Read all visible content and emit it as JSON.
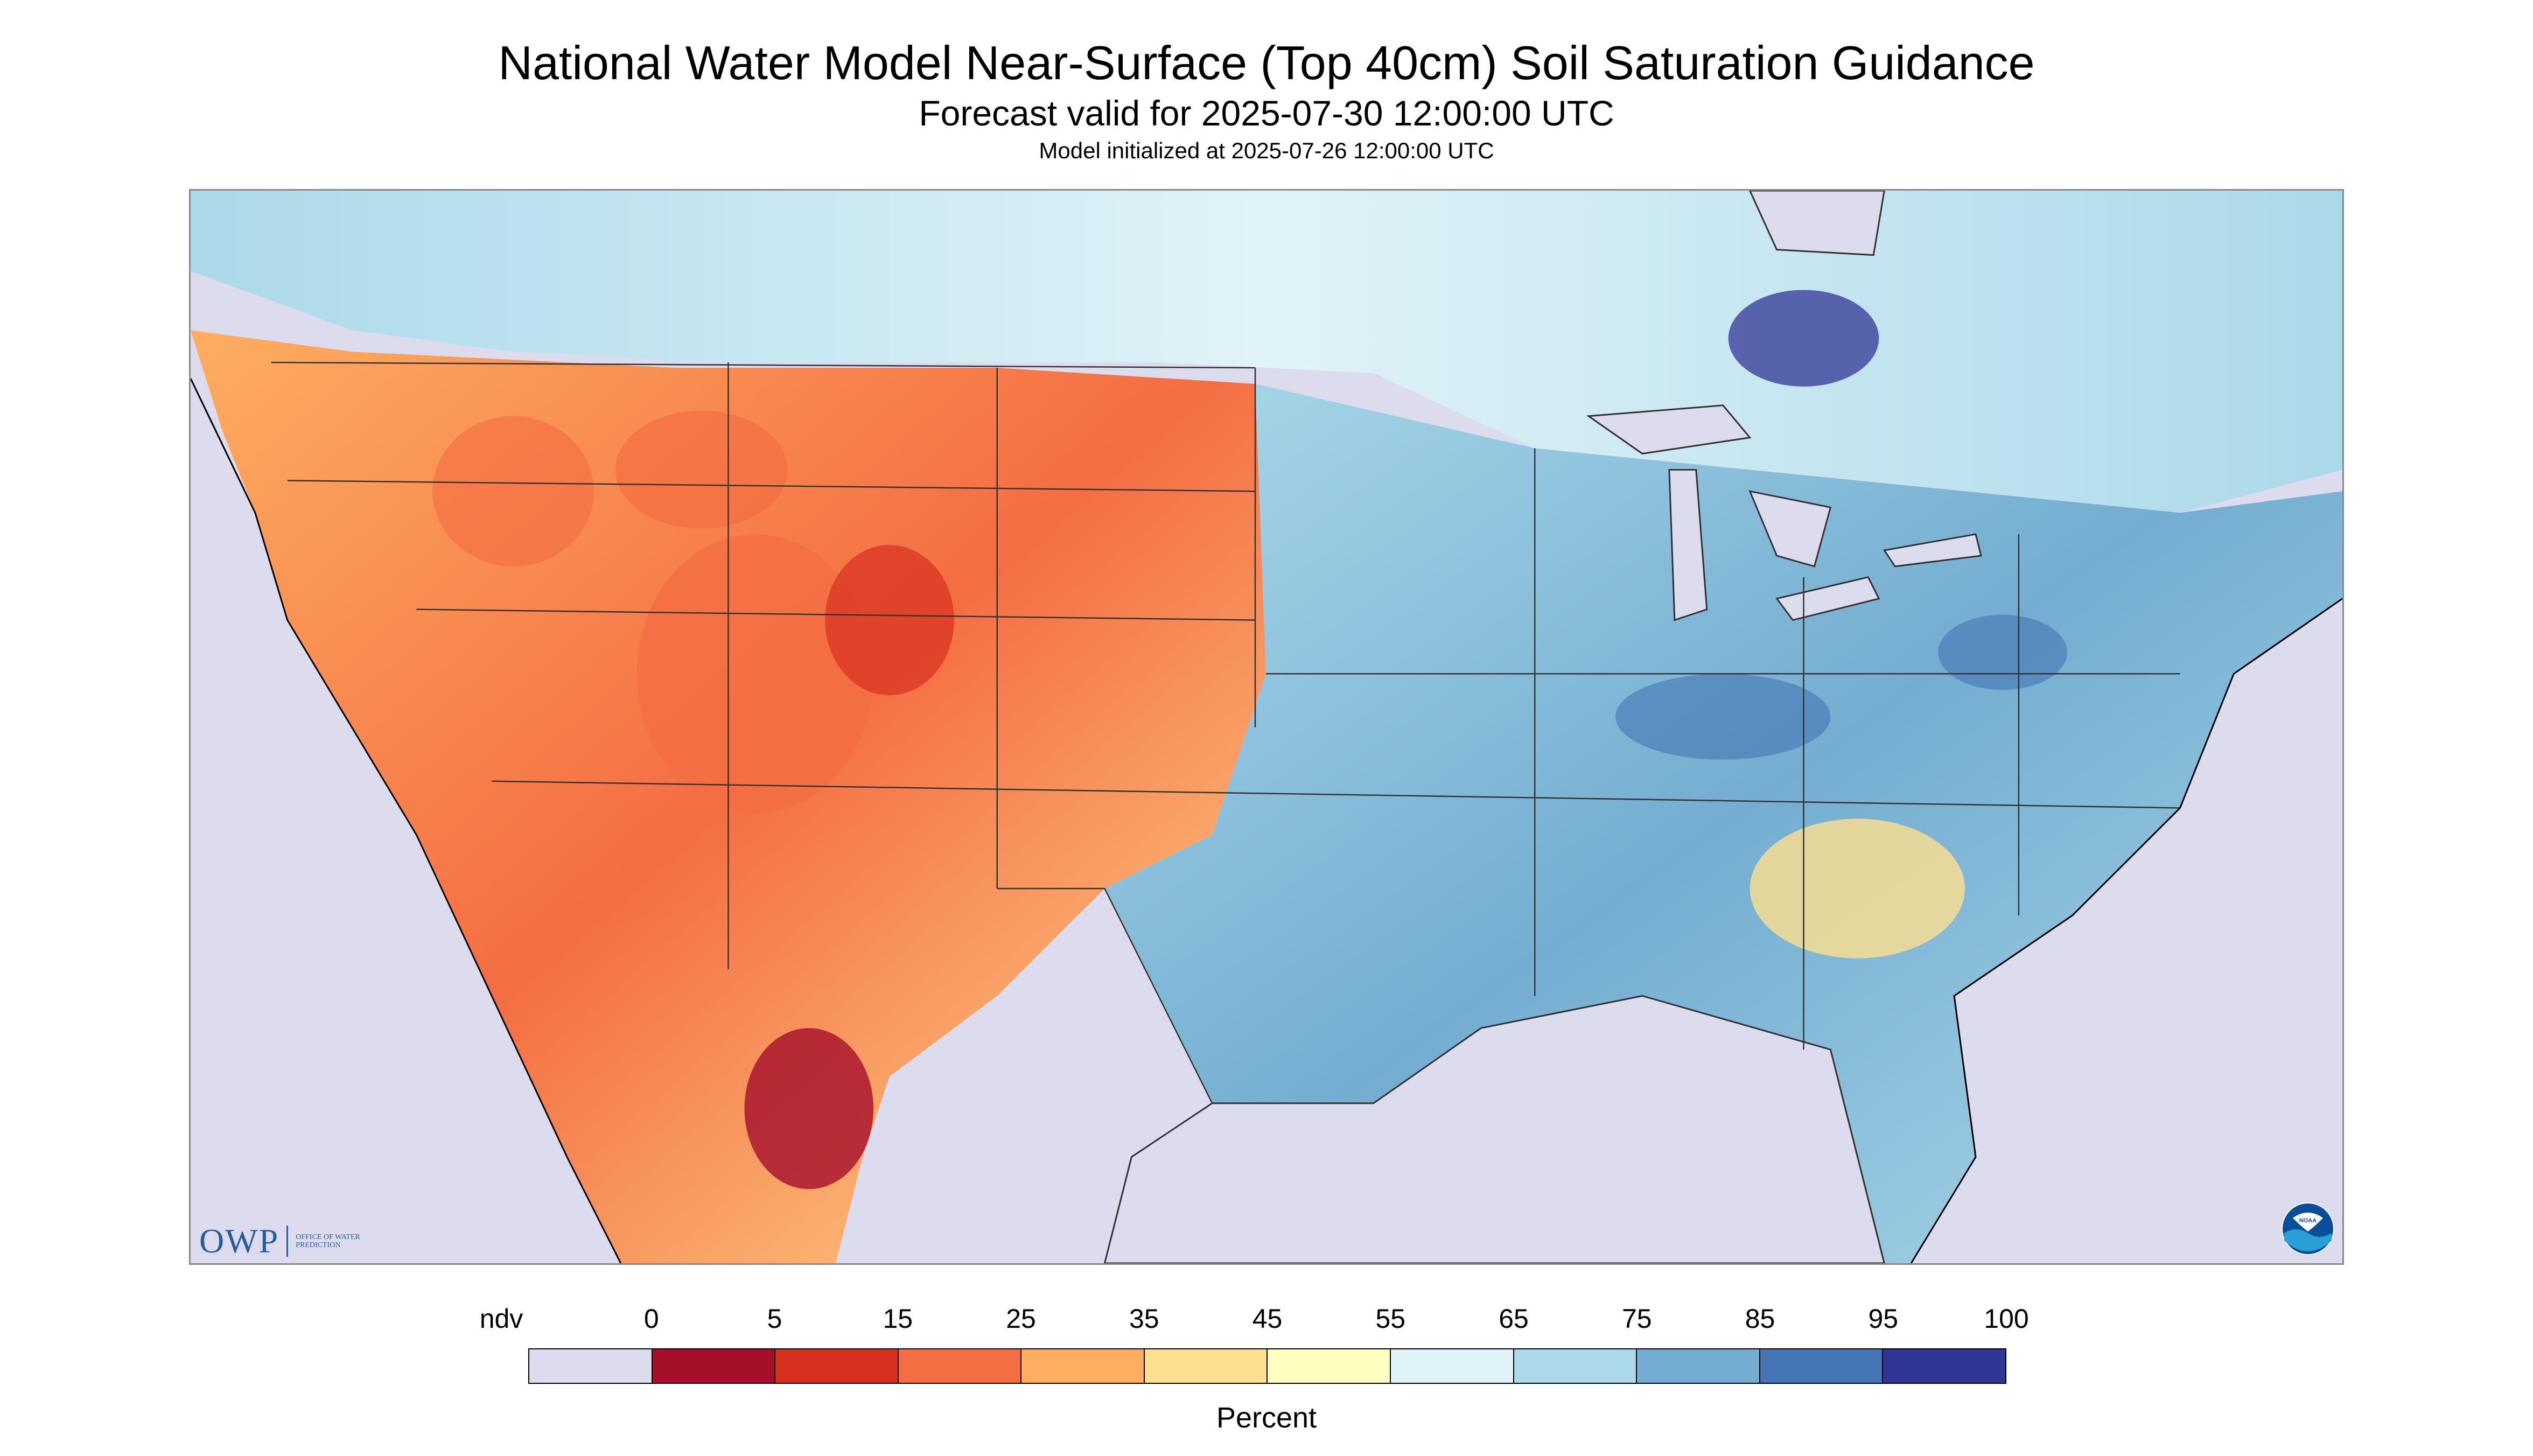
{
  "header": {
    "title": "National Water Model Near-Surface (Top 40cm) Soil Saturation Guidance",
    "subtitle": "Forecast valid for 2025-07-30 12:00:00 UTC",
    "init": "Model initialized at 2025-07-26 12:00:00 UTC"
  },
  "logos": {
    "owp": "OWP",
    "owp_sub": "OFFICE OF WATER PREDICTION",
    "noaa": "NOAA"
  },
  "legend": {
    "labels": [
      "ndv",
      "0",
      "5",
      "15",
      "25",
      "35",
      "45",
      "55",
      "65",
      "75",
      "85",
      "95",
      "100"
    ],
    "colors": [
      "#dcdcee",
      "#a50f2a",
      "#d7301f",
      "#f46d43",
      "#fdae61",
      "#fee090",
      "#ffffbf",
      "#e0f3f8",
      "#abd9e9",
      "#74add1",
      "#4575b4",
      "#313695"
    ],
    "unit": "Percent"
  },
  "map": {
    "no_data_color": "#dcdcee",
    "water_color": "#dcdcee",
    "border_color": "#333333"
  }
}
